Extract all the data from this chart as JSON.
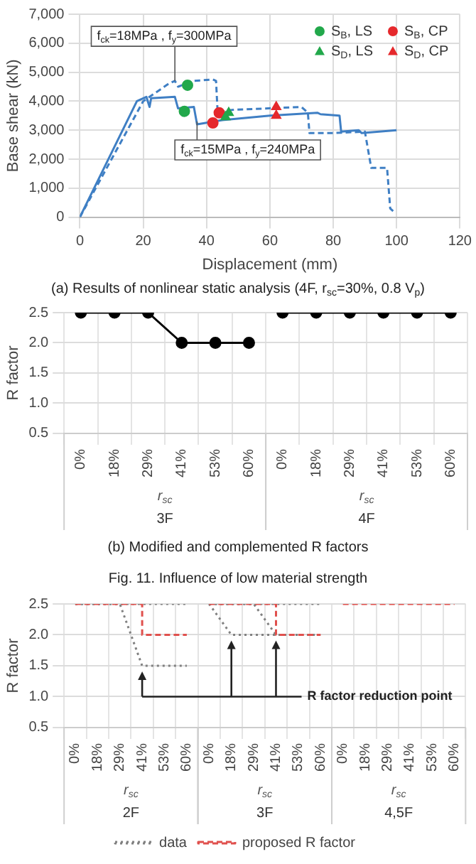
{
  "chart_data": [
    {
      "type": "line",
      "title": "(a) Results of nonlinear static analysis (4F, r$_{sc}$=30%, 0.8 V$_{p}$)",
      "xlabel": "Displacement (mm)",
      "ylabel": "Base shear (kN)",
      "xlim": [
        0,
        120
      ],
      "xticks": [
        0,
        20,
        40,
        60,
        80,
        100,
        120
      ],
      "ylim": [
        0,
        7000
      ],
      "yticks": [
        0,
        {
          "value": 1000,
          "label": "1,000"
        },
        {
          "value": 2000,
          "label": "2,000"
        },
        {
          "value": 3000,
          "label": "3,000"
        },
        {
          "value": 4000,
          "label": "4,000"
        },
        {
          "value": 5000,
          "label": "5,000"
        },
        {
          "value": 6000,
          "label": "6,000"
        },
        {
          "value": 7000,
          "label": "7,000"
        }
      ],
      "grid": true,
      "legend": "top right",
      "series": [
        {
          "color": "#3f7fc4",
          "line_style": "solid",
          "marker": "none",
          "x": [
            0,
            18,
            21,
            22,
            22.5,
            30,
            31,
            36,
            37,
            45,
            60,
            75,
            76,
            82,
            82.5,
            88,
            89,
            100
          ],
          "values": [
            0,
            4000,
            4150,
            3800,
            4100,
            4150,
            3750,
            3800,
            3200,
            3350,
            3500,
            3600,
            3550,
            3500,
            2950,
            3000,
            2900,
            3000
          ]
        },
        {
          "color": "#3f7fc4",
          "line_style": "dashed",
          "marker": "none",
          "x": [
            0,
            20,
            28,
            30,
            31,
            36,
            42,
            43,
            43.5,
            48,
            70,
            72,
            72.5,
            80,
            90,
            92,
            97,
            98,
            99
          ],
          "values": [
            0,
            4000,
            4600,
            4700,
            4500,
            4700,
            4750,
            4700,
            3600,
            3700,
            3800,
            3600,
            2900,
            2900,
            2950,
            1700,
            1700,
            300,
            200
          ]
        },
        {
          "type": "scatter",
          "name": "S$_{B}$, LS",
          "color": "#22a84b",
          "marker": "circle",
          "x": [
            34,
            33
          ],
          "values": [
            4550,
            3650
          ]
        },
        {
          "type": "scatter",
          "name": "S$_{D}$, LS",
          "color": "#22a84b",
          "marker": "triangle",
          "x": [
            47,
            46
          ],
          "values": [
            3600,
            3450
          ]
        },
        {
          "type": "scatter",
          "name": "S$_{B}$, CP",
          "color": "#e5282c",
          "marker": "circle",
          "x": [
            42,
            44
          ],
          "values": [
            3250,
            3600
          ]
        },
        {
          "type": "scatter",
          "name": "S$_{D}$, CP",
          "color": "#e5282c",
          "marker": "triangle",
          "x": [
            62,
            62
          ],
          "values": [
            3800,
            3500
          ]
        }
      ],
      "annotations": [
        {
          "text": "f$_{ck}$=18MPa , f$_{y}$=300MPa",
          "x": 30,
          "y": 4700
        },
        {
          "text": "f$_{ck}$=15MPa , f$_{y}$=240MPa",
          "x": 37,
          "y": 3300
        }
      ]
    },
    {
      "type": "line",
      "title": "(b) Modified and complemented R factors",
      "subtitle": "Fig. 11. Influence of low material strength",
      "xlabel": "r$_{sc}$",
      "ylabel": "R factor",
      "categories": [
        "0%",
        "18%",
        "29%",
        "41%",
        "53%",
        "60%",
        "0%",
        "18%",
        "29%",
        "41%",
        "53%",
        "60%"
      ],
      "ylim": [
        0.5,
        2.5
      ],
      "yticks": [
        0.5,
        {
          "value": 1,
          "label": "1.0"
        },
        1.5,
        {
          "value": 2,
          "label": "2.0"
        },
        2.5
      ],
      "grid": true,
      "series": [
        {
          "color": "#000000",
          "marker": "circle",
          "line_style": "solid",
          "values": [
            2.5,
            2.5,
            2.5,
            2,
            2,
            2,
            null,
            null,
            null,
            null,
            null,
            null
          ]
        },
        {
          "color": "#000000",
          "marker": "circle",
          "line_style": "solid",
          "values": [
            null,
            null,
            null,
            null,
            null,
            null,
            2.5,
            2.5,
            2.5,
            2.5,
            2.5,
            2.5
          ]
        }
      ],
      "annotations": [
        "3F",
        "4F"
      ]
    },
    {
      "type": "line",
      "xlabel": "r$_{sc}$",
      "ylabel": "R factor",
      "categories": [
        "0%",
        "18%",
        "29%",
        "41%",
        "53%",
        "60%",
        "0%",
        "18%",
        "29%",
        "41%",
        "53%",
        "60%",
        "0%",
        "18%",
        "29%",
        "41%",
        "53%",
        "60%"
      ],
      "ylim": [
        0.5,
        2.5
      ],
      "yticks": [
        0.5,
        {
          "value": 1,
          "label": "1.0"
        },
        1.5,
        {
          "value": 2,
          "label": "2.0"
        },
        2.5
      ],
      "grid": true,
      "legend": "bottom",
      "series": [
        {
          "name": "data",
          "color": "#808080",
          "line_style": "dotted",
          "marker": "none",
          "values": [
            2.5,
            2.5,
            2.5,
            2.5,
            2.5,
            2.5,
            null,
            null,
            null,
            null,
            null,
            null,
            null,
            null,
            null,
            null,
            null,
            null
          ]
        },
        {
          "color": "#808080",
          "line_style": "dotted",
          "marker": "none",
          "values": [
            2.5,
            2.5,
            2.5,
            1.5,
            1.5,
            1.5,
            null,
            null,
            null,
            null,
            null,
            null,
            null,
            null,
            null,
            null,
            null,
            null
          ]
        },
        {
          "color": "#808080",
          "line_style": "dotted",
          "marker": "none",
          "values": [
            null,
            null,
            null,
            null,
            null,
            null,
            2.5,
            2,
            2,
            2,
            2,
            2,
            null,
            null,
            null,
            null,
            null,
            null
          ]
        },
        {
          "color": "#808080",
          "line_style": "dotted",
          "marker": "none",
          "values": [
            null,
            null,
            null,
            null,
            null,
            null,
            2.5,
            2.5,
            2.5,
            2,
            2,
            2,
            null,
            null,
            null,
            null,
            null,
            null
          ]
        },
        {
          "color": "#808080",
          "line_style": "dotted",
          "marker": "none",
          "values": [
            null,
            null,
            null,
            null,
            null,
            null,
            2.5,
            2.5,
            2.5,
            2.5,
            2.5,
            2.5,
            null,
            null,
            null,
            null,
            null,
            null
          ]
        },
        {
          "type": "step",
          "name": "proposed R factor",
          "color": "#e0504d",
          "line_style": "dashed",
          "marker": "none",
          "values": [
            2.5,
            2.5,
            2.5,
            2,
            2,
            2,
            null,
            null,
            null,
            null,
            null,
            null,
            null,
            null,
            null,
            null,
            null,
            null
          ]
        },
        {
          "type": "step",
          "color": "#e0504d",
          "line_style": "dashed",
          "marker": "none",
          "values": [
            null,
            null,
            null,
            null,
            null,
            null,
            2.5,
            2.5,
            2.5,
            2,
            2,
            2,
            null,
            null,
            null,
            null,
            null,
            null
          ]
        },
        {
          "type": "step",
          "color": "#e0504d",
          "line_style": "dashed",
          "marker": "none",
          "values": [
            null,
            null,
            null,
            null,
            null,
            null,
            null,
            null,
            null,
            null,
            null,
            null,
            2.5,
            2.5,
            2.5,
            2.5,
            2.5,
            2.5
          ]
        }
      ],
      "annotations": [
        "2F",
        "3F",
        "4,5F",
        "R factor reduction point"
      ]
    }
  ]
}
